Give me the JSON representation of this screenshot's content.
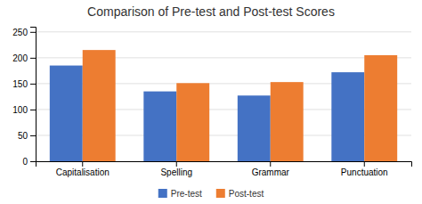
{
  "chart_data": {
    "type": "bar",
    "title": "Comparison of Pre-test and Post-test Scores",
    "categories": [
      "Capitalisation",
      "Spelling",
      "Grammar",
      "Punctuation"
    ],
    "series": [
      {
        "name": "Pre-test",
        "color": "#4472C4",
        "values": [
          185,
          135,
          127,
          172
        ]
      },
      {
        "name": "Post-test",
        "color": "#ED7D31",
        "values": [
          215,
          151,
          153,
          205
        ]
      }
    ],
    "ylim": [
      0,
      260
    ],
    "yticks": [
      0,
      50,
      100,
      150,
      200,
      250
    ],
    "grid": true,
    "legend": "bottom"
  }
}
